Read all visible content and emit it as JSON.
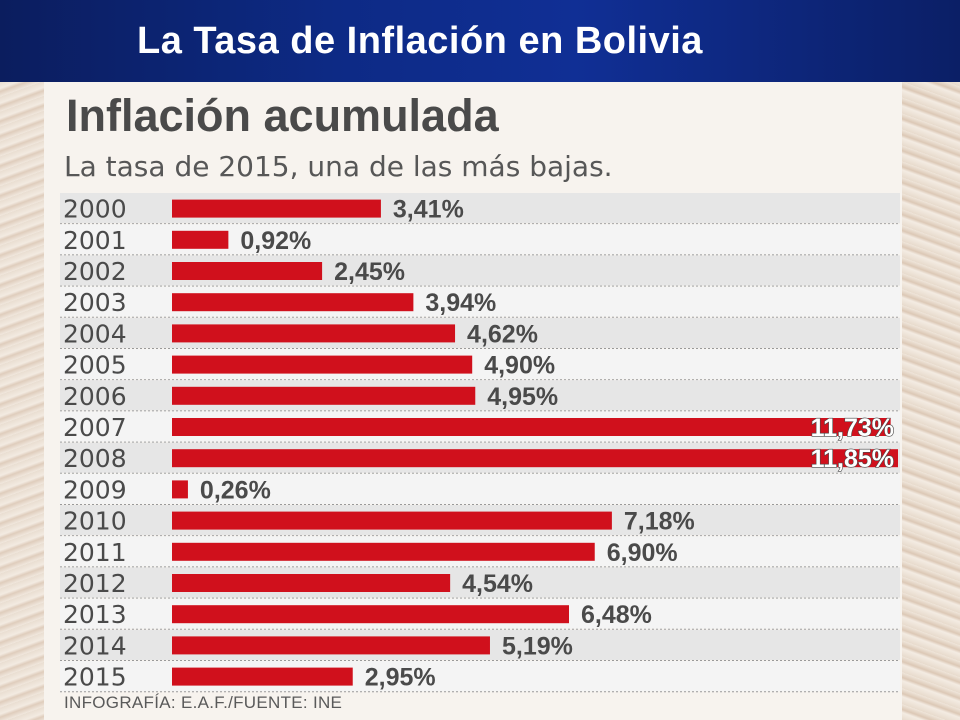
{
  "slide": {
    "title": "La Tasa de Inflación en Bolivia"
  },
  "colors": {
    "header_bg": "#0d2a85",
    "bar": "#d0101c",
    "row_alt": "#e6e6e6",
    "text_dark": "#4a4a4a"
  },
  "chart_data": {
    "type": "bar",
    "orientation": "horizontal",
    "title": "Inflación acumulada",
    "subtitle": "La tasa de 2015, una de las más bajas.",
    "categories": [
      "2000",
      "2001",
      "2002",
      "2003",
      "2004",
      "2005",
      "2006",
      "2007",
      "2008",
      "2009",
      "2010",
      "2011",
      "2012",
      "2013",
      "2014",
      "2015"
    ],
    "values": [
      3.41,
      0.92,
      2.45,
      3.94,
      4.62,
      4.9,
      4.95,
      11.73,
      11.85,
      0.26,
      7.18,
      6.9,
      4.54,
      6.48,
      5.19,
      2.95
    ],
    "value_labels": [
      "3,41%",
      "0,92%",
      "2,45%",
      "3,94%",
      "4,62%",
      "4,90%",
      "4,95%",
      "11,73%",
      "11,85%",
      "0,26%",
      "7,18%",
      "6,90%",
      "4,54%",
      "6,48%",
      "5,19%",
      "2,95%"
    ],
    "source": "INFOGRAFÍA: E.A.F./FUENTE: INE",
    "xlim": [
      0,
      11.85
    ],
    "grid": false,
    "legend": "none"
  }
}
